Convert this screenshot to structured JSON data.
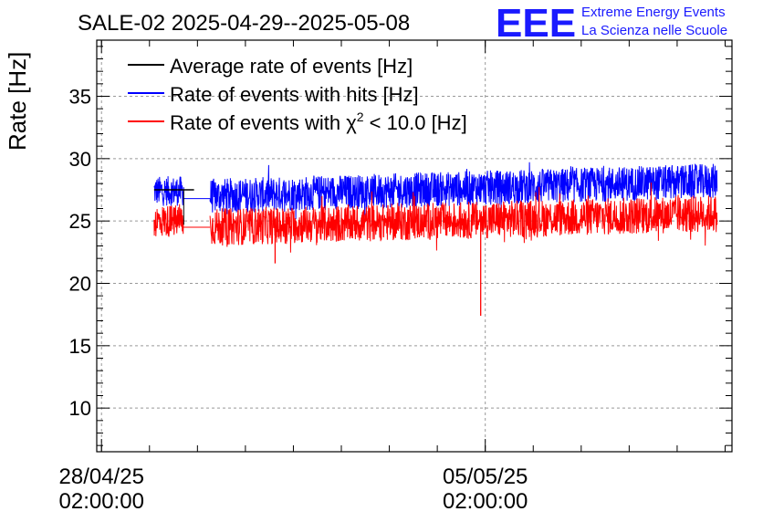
{
  "chart_data": {
    "type": "line",
    "title": "SALE-02 2025-04-29--2025-05-08",
    "ylabel": "Rate [Hz]",
    "xlabel": "",
    "ylim": [
      6.5,
      39.5
    ],
    "yticks": [
      10,
      15,
      20,
      25,
      30,
      35
    ],
    "x_ticks": [
      {
        "date": "28/04/25",
        "time": "02:00:00"
      },
      {
        "date": "05/05/25",
        "time": "02:00:00"
      }
    ],
    "xlim_days": [
      "2025-04-27T23:55:00",
      "2025-05-09T14:00:00"
    ],
    "grid": true,
    "legend_position": "top-left",
    "series": [
      {
        "name": "Average rate of events [Hz]",
        "color": "#000000",
        "points": [
          {
            "t": "2025-04-29T01:00:00",
            "v": 27.5
          },
          {
            "t": "2025-04-29T18:30:00",
            "v": 27.5
          }
        ]
      },
      {
        "name": "Rate of events with hits [Hz]",
        "color": "#0000ff",
        "segments": [
          {
            "start": "2025-04-29T01:00:00",
            "end": "2025-04-29T14:00:00",
            "mean": 27.4,
            "amp": 1.2
          },
          {
            "start": "2025-04-29T14:00:00",
            "end": "2025-04-30T01:30:00",
            "mean": 26.8,
            "amp": 0.2
          },
          {
            "start": "2025-04-30T01:30:00",
            "end": "2025-05-09T07:30:00",
            "mean_start": 27.0,
            "mean_end": 28.2,
            "amp": 1.4
          }
        ]
      },
      {
        "name": "Rate of events with χ² < 10.0 [Hz]",
        "color": "#ff0000",
        "segments": [
          {
            "start": "2025-04-29T01:00:00",
            "end": "2025-04-29T14:00:00",
            "mean": 25.0,
            "amp": 1.3
          },
          {
            "start": "2025-04-29T14:00:00",
            "end": "2025-04-30T01:30:00",
            "mean": 24.5,
            "amp": 0.2
          },
          {
            "start": "2025-04-30T01:30:00",
            "end": "2025-05-09T07:30:00",
            "mean_start": 24.5,
            "mean_end": 25.6,
            "amp": 1.5
          }
        ],
        "outliers": [
          {
            "t": "2025-05-05T00:00:00",
            "v": 17.4
          },
          {
            "t": "2025-05-01T06:00:00",
            "v": 21.6
          }
        ]
      }
    ]
  },
  "legend": {
    "avg": "Average rate of events [Hz]",
    "hits": "Rate of events with hits [Hz]",
    "chi_prefix": "Rate of events with χ",
    "chi_sup": "2",
    "chi_suffix": " < 10.0 [Hz]"
  },
  "logo": {
    "letters": "EEE",
    "line1": "Extreme Energy Events",
    "line2": "La Scienza nelle Scuole",
    "color": "#1a1aff"
  }
}
